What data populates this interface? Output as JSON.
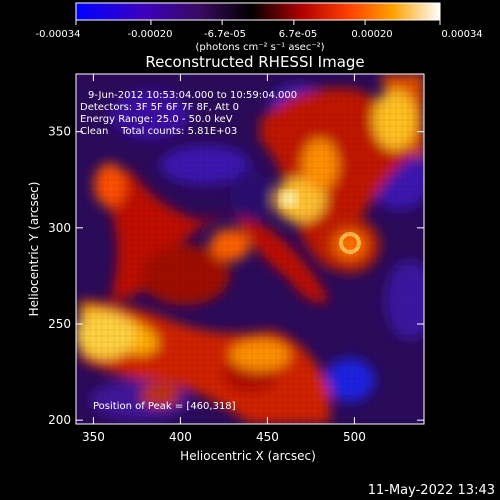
{
  "colorbar": {
    "tick_labels": [
      "-0.00034",
      "-0.00020",
      "-6.7e-05",
      "6.7e-05",
      "0.00020",
      "0.00034"
    ],
    "tick_values": [
      -0.00034,
      -0.0002,
      -6.7e-05,
      6.7e-05,
      0.0002,
      0.00034
    ],
    "range": [
      -0.00034,
      0.00034
    ],
    "units_label": "(photons cm⁻² s⁻¹ asec⁻²)"
  },
  "chart_data": {
    "type": "heatmap",
    "title": "Reconstructed RHESSI Image",
    "xlabel": "Heliocentric X (arcsec)",
    "ylabel": "Heliocentric Y (arcsec)",
    "xlim": [
      340,
      540
    ],
    "ylim": [
      198,
      380
    ],
    "x_ticks": [
      350,
      400,
      450,
      500
    ],
    "y_ticks": [
      200,
      250,
      300,
      350
    ],
    "annotations": [
      "9-Jun-2012 10:53:04.000 to 10:59:04.000",
      "Detectors: 3F 5F 6F 7F 8F, Att 0",
      "Energy Range: 25.0 - 50.0 keV",
      "Clean    Total counts: 5.81E+03"
    ],
    "peak_label": "Position of Peak = [460,318]",
    "peak_position": [
      460,
      318
    ],
    "colormap": [
      "#0000ff",
      "#4a00c8",
      "#2a0a40",
      "#000000",
      "#a00000",
      "#ff3000",
      "#ff9000",
      "#ffe060",
      "#ffffff"
    ]
  },
  "footer": {
    "timestamp": "11-May-2022 13:43"
  }
}
